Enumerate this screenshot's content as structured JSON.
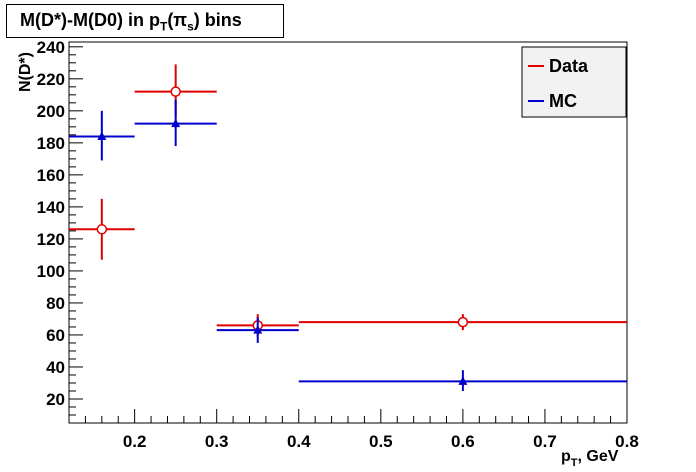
{
  "chart_data": {
    "type": "scatter",
    "title": "M(D*)-M(D0) in p_T(π_s) bins",
    "title_parts": {
      "main": "M(D*)-M(D0) in p",
      "sub1": "T",
      "paren": "(π",
      "sub2": "s",
      "tail": ") bins"
    },
    "xlabel": "p_T, GeV",
    "xlabel_parts": {
      "main": "p",
      "sub": "T",
      "tail": ", GeV"
    },
    "ylabel": "N(D*)",
    "xlim": [
      0.12,
      0.8
    ],
    "ylim": [
      5,
      243
    ],
    "xticks": [
      "0.2",
      "0.3",
      "0.4",
      "0.5",
      "0.6",
      "0.7",
      "0.8"
    ],
    "yticks": [
      "20",
      "40",
      "60",
      "80",
      "100",
      "120",
      "140",
      "160",
      "180",
      "200",
      "220",
      "240"
    ],
    "legend_position": "top-right",
    "series": [
      {
        "name": "Data",
        "color": "#e00000",
        "marker": "open-circle",
        "points": [
          {
            "x": 0.16,
            "xlo": 0.12,
            "xhi": 0.2,
            "y": 126,
            "ylo": 107,
            "yhi": 145
          },
          {
            "x": 0.25,
            "xlo": 0.2,
            "xhi": 0.3,
            "y": 212,
            "ylo": 196,
            "yhi": 229
          },
          {
            "x": 0.35,
            "xlo": 0.3,
            "xhi": 0.4,
            "y": 66,
            "ylo": 59,
            "yhi": 73
          },
          {
            "x": 0.6,
            "xlo": 0.4,
            "xhi": 0.8,
            "y": 68,
            "ylo": 63,
            "yhi": 73
          }
        ]
      },
      {
        "name": "MC",
        "color": "#0000cc",
        "marker": "filled-triangle",
        "points": [
          {
            "x": 0.16,
            "xlo": 0.12,
            "xhi": 0.2,
            "y": 184,
            "ylo": 169,
            "yhi": 200
          },
          {
            "x": 0.25,
            "xlo": 0.2,
            "xhi": 0.3,
            "y": 192,
            "ylo": 178,
            "yhi": 207
          },
          {
            "x": 0.35,
            "xlo": 0.3,
            "xhi": 0.4,
            "y": 63,
            "ylo": 55,
            "yhi": 71
          },
          {
            "x": 0.6,
            "xlo": 0.4,
            "xhi": 0.8,
            "y": 31,
            "ylo": 25,
            "yhi": 38
          }
        ]
      }
    ]
  }
}
